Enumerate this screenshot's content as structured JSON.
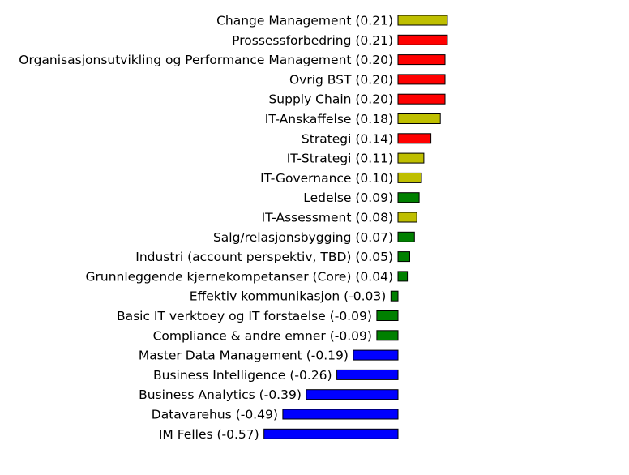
{
  "chart_data": {
    "type": "bar",
    "orientation": "horizontal",
    "title": "",
    "xlabel": "",
    "ylabel": "",
    "grid": false,
    "axes_visible": false,
    "xlim": [
      -0.6,
      0.3
    ],
    "bars": [
      {
        "category": "Change Management",
        "value": 0.21,
        "label": "Change Management (0.21)",
        "color": "#bfbf00"
      },
      {
        "category": "Prossessforbedring",
        "value": 0.21,
        "label": "Prossessforbedring (0.21)",
        "color": "#ff0000"
      },
      {
        "category": "Organisasjonsutvikling og Performance Management",
        "value": 0.2,
        "label": "Organisasjonsutvikling og Performance Management (0.20)",
        "color": "#ff0000"
      },
      {
        "category": "Ovrig BST",
        "value": 0.2,
        "label": "Ovrig BST (0.20)",
        "color": "#ff0000"
      },
      {
        "category": "Supply Chain",
        "value": 0.2,
        "label": "Supply Chain (0.20)",
        "color": "#ff0000"
      },
      {
        "category": "IT-Anskaffelse",
        "value": 0.18,
        "label": "IT-Anskaffelse (0.18)",
        "color": "#bfbf00"
      },
      {
        "category": "Strategi",
        "value": 0.14,
        "label": "Strategi (0.14)",
        "color": "#ff0000"
      },
      {
        "category": "IT-Strategi",
        "value": 0.11,
        "label": "IT-Strategi (0.11)",
        "color": "#bfbf00"
      },
      {
        "category": "IT-Governance",
        "value": 0.1,
        "label": "IT-Governance (0.10)",
        "color": "#bfbf00"
      },
      {
        "category": "Ledelse",
        "value": 0.09,
        "label": "Ledelse (0.09)",
        "color": "#008000"
      },
      {
        "category": "IT-Assessment",
        "value": 0.08,
        "label": "IT-Assessment (0.08)",
        "color": "#bfbf00"
      },
      {
        "category": "Salg/relasjonsbygging",
        "value": 0.07,
        "label": "Salg/relasjonsbygging (0.07)",
        "color": "#008000"
      },
      {
        "category": "Industri (account perspektiv, TBD)",
        "value": 0.05,
        "label": "Industri (account perspektiv, TBD) (0.05)",
        "color": "#008000"
      },
      {
        "category": "Grunnleggende kjernekompetanser (Core)",
        "value": 0.04,
        "label": "Grunnleggende kjernekompetanser (Core) (0.04)",
        "color": "#008000"
      },
      {
        "category": "Effektiv kommunikasjon",
        "value": -0.03,
        "label": "Effektiv kommunikasjon (-0.03)",
        "color": "#008000"
      },
      {
        "category": "Basic IT verktoey og IT forstaelse",
        "value": -0.09,
        "label": "Basic IT verktoey og IT forstaelse (-0.09)",
        "color": "#008000"
      },
      {
        "category": "Compliance & andre emner",
        "value": -0.09,
        "label": "Compliance & andre emner (-0.09)",
        "color": "#008000"
      },
      {
        "category": "Master Data Management",
        "value": -0.19,
        "label": "Master Data Management (-0.19)",
        "color": "#0000ff"
      },
      {
        "category": "Business Intelligence",
        "value": -0.26,
        "label": "Business Intelligence (-0.26)",
        "color": "#0000ff"
      },
      {
        "category": "Business Analytics",
        "value": -0.39,
        "label": "Business Analytics (-0.39)",
        "color": "#0000ff"
      },
      {
        "category": "Datavarehus",
        "value": -0.49,
        "label": "Datavarehus (-0.49)",
        "color": "#0000ff"
      },
      {
        "category": "IM Felles",
        "value": -0.57,
        "label": "IM Felles (-0.57)",
        "color": "#0000ff"
      }
    ]
  }
}
